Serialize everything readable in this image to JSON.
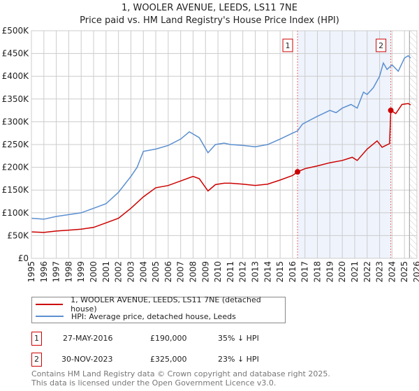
{
  "chart_data": {
    "type": "line",
    "title": "1, WOOLER AVENUE, LEEDS, LS11 7NE",
    "subtitle": "Price paid vs. HM Land Registry's House Price Index (HPI)",
    "xlim": [
      1995,
      2026
    ],
    "ylim": [
      0,
      500000
    ],
    "x_ticks": [
      "1995",
      "1996",
      "1997",
      "1998",
      "1999",
      "2000",
      "2001",
      "2002",
      "2003",
      "2004",
      "2005",
      "2006",
      "2007",
      "2008",
      "2009",
      "2010",
      "2011",
      "2012",
      "2013",
      "2014",
      "2015",
      "2016",
      "2017",
      "2018",
      "2019",
      "2020",
      "2021",
      "2022",
      "2023",
      "2024",
      "2025",
      "2026"
    ],
    "y_ticks": [
      "£0",
      "£50K",
      "£100K",
      "£150K",
      "£200K",
      "£250K",
      "£300K",
      "£350K",
      "£400K",
      "£450K",
      "£500K"
    ],
    "grid": true,
    "series": [
      {
        "name": "1, WOOLER AVENUE, LEEDS, LS11 7NE (detached house)",
        "color": "#cc0000",
        "x": [
          1995,
          1996,
          1997,
          1998,
          1999,
          2000,
          2001,
          2002,
          2003,
          2004,
          2005,
          2006,
          2007,
          2008,
          2008.5,
          2009.2,
          2009.8,
          2010.5,
          2011,
          2012,
          2013,
          2014,
          2015,
          2016,
          2016.4,
          2017,
          2018,
          2019,
          2020,
          2020.8,
          2021.2,
          2022,
          2022.8,
          2023.2,
          2023.8,
          2023.9,
          2024.3,
          2024.8,
          2025.3,
          2025.5
        ],
        "y": [
          58000,
          57000,
          60000,
          62000,
          64000,
          68000,
          78000,
          88000,
          110000,
          135000,
          155000,
          160000,
          170000,
          180000,
          175000,
          148000,
          162000,
          165000,
          165000,
          163000,
          160000,
          163000,
          172000,
          182000,
          190000,
          197000,
          203000,
          210000,
          215000,
          222000,
          215000,
          240000,
          258000,
          244000,
          252000,
          325000,
          318000,
          338000,
          340000,
          337000
        ]
      },
      {
        "name": "HPI: Average price, detached house, Leeds",
        "color": "#5b8fd0",
        "x": [
          1995,
          1996,
          1997,
          1998,
          1999,
          2000,
          2001,
          2002,
          2003,
          2003.5,
          2004,
          2005,
          2006,
          2007,
          2007.7,
          2008.5,
          2009.2,
          2009.8,
          2010.5,
          2011,
          2012,
          2013,
          2014,
          2015,
          2016,
          2016.4,
          2016.8,
          2017.5,
          2018,
          2019,
          2019.5,
          2020,
          2020.7,
          2021.2,
          2021.7,
          2022,
          2022.5,
          2023,
          2023.3,
          2023.6,
          2024,
          2024.5,
          2025,
          2025.3,
          2025.5
        ],
        "y": [
          88000,
          86000,
          92000,
          96000,
          100000,
          110000,
          120000,
          145000,
          180000,
          200000,
          235000,
          240000,
          248000,
          262000,
          278000,
          265000,
          232000,
          250000,
          253000,
          250000,
          248000,
          245000,
          250000,
          262000,
          275000,
          280000,
          295000,
          305000,
          312000,
          325000,
          320000,
          330000,
          338000,
          330000,
          365000,
          360000,
          375000,
          400000,
          429000,
          415000,
          425000,
          411000,
          440000,
          445000,
          440000
        ]
      }
    ],
    "annotations": [
      {
        "label": "1",
        "x": 2016.4,
        "y": 190000
      },
      {
        "label": "2",
        "x": 2023.9,
        "y": 325000
      }
    ],
    "shaded_range": [
      2016.4,
      2023.9
    ],
    "hatched_from": 2025.4
  },
  "legend": {
    "items": [
      "1, WOOLER AVENUE, LEEDS, LS11 7NE (detached house)",
      "HPI: Average price, detached house, Leeds"
    ]
  },
  "sales": [
    {
      "num": "1",
      "date": "27-MAY-2016",
      "price": "£190,000",
      "hpi": "35% ↓ HPI"
    },
    {
      "num": "2",
      "date": "30-NOV-2023",
      "price": "£325,000",
      "hpi": "23% ↓ HPI"
    }
  ],
  "footer": {
    "line1": "Contains HM Land Registry data © Crown copyright and database right 2025.",
    "line2": "This data is licensed under the Open Government Licence v3.0."
  }
}
